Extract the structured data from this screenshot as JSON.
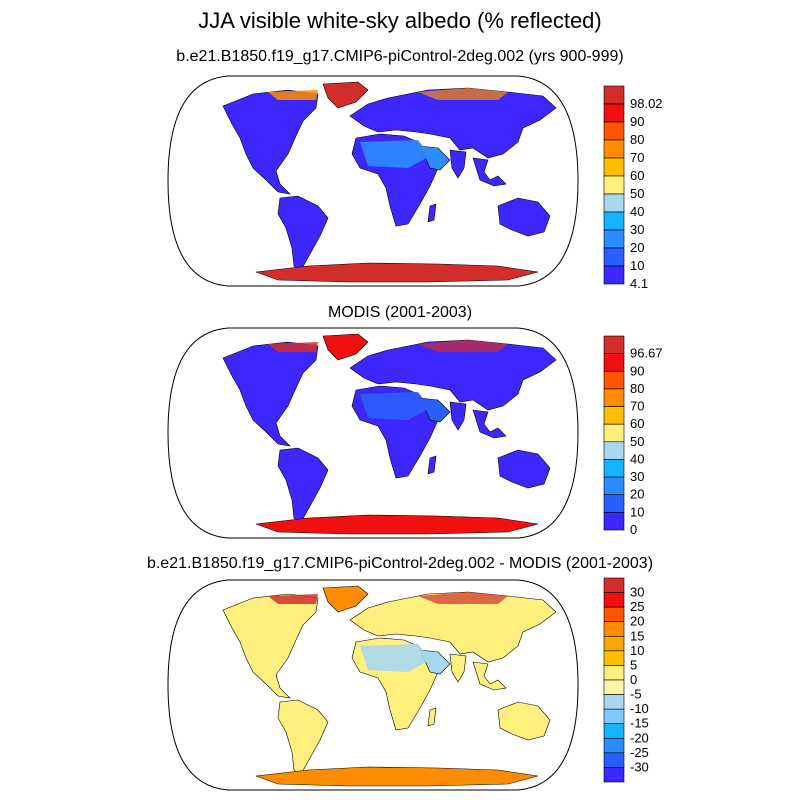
{
  "title": "JJA visible white-sky albedo (% reflected)",
  "panels": [
    {
      "id": "model",
      "title": "b.e21.B1850.f19_g17.CMIP6-piControl-2deg.002 (yrs 900-999)",
      "colorbar": {
        "labels": [
          "98.02",
          "90",
          "80",
          "70",
          "60",
          "50",
          "40",
          "30",
          "20",
          "10",
          "4.1"
        ],
        "colors": [
          "#d22d2b",
          "#f01010",
          "#ff5500",
          "#ff8c00",
          "#ffbf00",
          "#fff07d",
          "#a8d7f0",
          "#14b4ff",
          "#2b8cff",
          "#2a5fff",
          "#3c28ff"
        ]
      }
    },
    {
      "id": "obs",
      "title": "MODIS (2001-2003)",
      "colorbar": {
        "labels": [
          "96.67",
          "90",
          "80",
          "70",
          "60",
          "50",
          "40",
          "30",
          "20",
          "10",
          "0"
        ],
        "colors": [
          "#d22d2b",
          "#f01010",
          "#ff5500",
          "#ff8c00",
          "#ffbf00",
          "#fff07d",
          "#a8d7f0",
          "#14b4ff",
          "#2b8cff",
          "#2a5fff",
          "#3c28ff"
        ]
      }
    },
    {
      "id": "diff",
      "title": "b.e21.B1850.f19_g17.CMIP6-piControl-2deg.002 - MODIS (2001-2003)",
      "colorbar": {
        "labels": [
          "30",
          "25",
          "20",
          "15",
          "10",
          "5",
          "0",
          "-5",
          "-10",
          "-15",
          "-20",
          "-25",
          "-30"
        ],
        "colors": [
          "#d22d2b",
          "#f01010",
          "#ff5500",
          "#ff8c00",
          "#ffa500",
          "#ffbf00",
          "#fff07d",
          "#fff5a8",
          "#a8d7f0",
          "#7ec8ff",
          "#14b4ff",
          "#2b8cff",
          "#2a5fff",
          "#3c28ff"
        ]
      }
    }
  ],
  "map_colors": {
    "model": {
      "land": "#3c28ff",
      "desert": "#2b8cff",
      "ice": "#d22d2b",
      "arctic": "#ff8c00"
    },
    "obs": {
      "land": "#3c28ff",
      "desert": "#2a5fff",
      "ice": "#f01010",
      "arctic": "#d22d2b"
    },
    "diff": {
      "land": "#fff07d",
      "desert": "#a8d7f0",
      "ice": "#ff8c00",
      "arctic": "#d22d2b"
    }
  }
}
